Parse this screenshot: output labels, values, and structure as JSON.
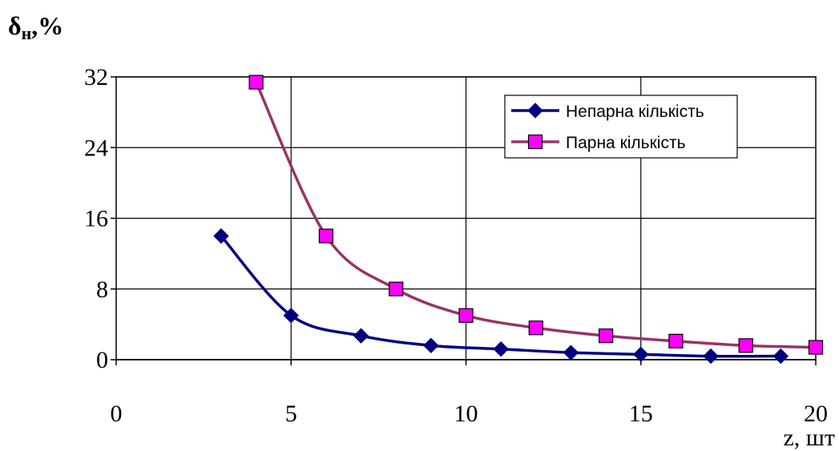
{
  "chart_data": {
    "type": "line",
    "ylabel_main": "δ",
    "ylabel_sub": "н",
    "ylabel_suffix": ",%",
    "xlabel": "z, шт",
    "xlim": [
      0,
      20
    ],
    "ylim": [
      0,
      32
    ],
    "x_ticks": [
      0,
      5,
      10,
      15,
      20
    ],
    "y_ticks": [
      0,
      8,
      16,
      24,
      32
    ],
    "grid": true,
    "legend_position": "top-right",
    "series": [
      {
        "name": "Непарна кількість",
        "color": "#000080",
        "marker": "diamond",
        "x": [
          3,
          5,
          7,
          9,
          11,
          13,
          15,
          17,
          19
        ],
        "y": [
          14,
          5,
          2.7,
          1.6,
          1.2,
          0.8,
          0.6,
          0.4,
          0.4
        ]
      },
      {
        "name": "Парна кількість",
        "color": "#993366",
        "marker_fill": "#ff00ff",
        "marker": "square",
        "x": [
          4,
          6,
          8,
          10,
          12,
          14,
          16,
          18,
          20
        ],
        "y": [
          31.4,
          14,
          8,
          5,
          3.6,
          2.7,
          2.1,
          1.6,
          1.4
        ]
      }
    ]
  }
}
